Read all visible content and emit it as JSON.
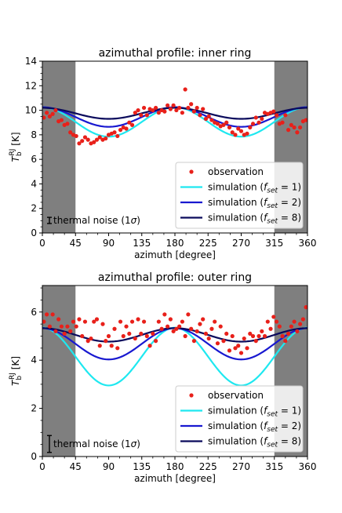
{
  "chart_data": [
    {
      "type": "line",
      "title": "azimuthal profile: inner ring",
      "xlabel": "azimuth [degree]",
      "ylabel": "T_b^RJ [K]",
      "xlim": [
        0,
        360
      ],
      "ylim": [
        0,
        14
      ],
      "xticks": [
        0,
        45,
        90,
        135,
        180,
        225,
        270,
        315,
        360
      ],
      "yticks": [
        0,
        2,
        4,
        6,
        8,
        10,
        12,
        14
      ],
      "shaded_ranges": [
        [
          0,
          45
        ],
        [
          315,
          360
        ]
      ],
      "legend": {
        "placement": "lower-right"
      },
      "noise_note": "thermal noise (1σ)",
      "noise_sigma": 0.25,
      "observation": {
        "name": "observation",
        "color": "#e8201a",
        "x": [
          2,
          6,
          10,
          14,
          18,
          22,
          26,
          30,
          34,
          38,
          42,
          46,
          50,
          54,
          58,
          62,
          66,
          70,
          74,
          78,
          82,
          86,
          90,
          94,
          98,
          102,
          106,
          110,
          114,
          118,
          122,
          126,
          130,
          134,
          138,
          142,
          146,
          150,
          154,
          158,
          162,
          166,
          170,
          174,
          178,
          182,
          186,
          190,
          194,
          198,
          202,
          206,
          210,
          214,
          218,
          222,
          226,
          230,
          234,
          238,
          242,
          246,
          250,
          254,
          258,
          262,
          266,
          270,
          274,
          278,
          282,
          286,
          290,
          294,
          298,
          302,
          306,
          310,
          314,
          318,
          322,
          326,
          330,
          334,
          338,
          342,
          346,
          350,
          354,
          358
        ],
        "y": [
          9.4,
          9.8,
          9.5,
          9.7,
          10.0,
          9.1,
          9.2,
          8.8,
          8.9,
          8.2,
          8.0,
          7.9,
          7.3,
          7.5,
          7.8,
          7.6,
          7.3,
          7.4,
          7.6,
          7.8,
          7.6,
          7.7,
          8.0,
          8.1,
          8.2,
          7.9,
          8.4,
          8.6,
          8.5,
          9.0,
          8.8,
          9.8,
          10.0,
          9.6,
          10.2,
          9.6,
          10.1,
          10.0,
          10.2,
          9.8,
          10.0,
          9.9,
          10.4,
          10.1,
          10.4,
          10.0,
          10.2,
          9.8,
          11.7,
          10.2,
          10.5,
          9.9,
          10.2,
          9.6,
          10.1,
          9.3,
          9.5,
          9.2,
          9.0,
          8.9,
          8.7,
          8.8,
          9.0,
          8.6,
          8.2,
          8.0,
          8.5,
          8.3,
          8.0,
          8.1,
          8.6,
          8.9,
          9.4,
          9.0,
          9.3,
          9.8,
          9.7,
          9.8,
          9.9,
          9.6,
          8.9,
          9.0,
          9.6,
          8.4,
          8.8,
          8.6,
          8.2,
          8.6,
          9.1,
          9.2
        ]
      },
      "series": [
        {
          "name": "simulation (f_set = 1)",
          "color": "#1ee8f0",
          "mean": 9.05,
          "amp": 1.2
        },
        {
          "name": "simulation (f_set = 2)",
          "color": "#1818d0",
          "mean": 9.45,
          "amp": 0.8
        },
        {
          "name": "simulation (f_set = 8)",
          "color": "#0a0a5c",
          "mean": 9.75,
          "amp": 0.45
        }
      ]
    },
    {
      "type": "line",
      "title": "azimuthal profile: outer ring",
      "xlabel": "azimuth [degree]",
      "ylabel": "T_b^RJ [K]",
      "xlim": [
        0,
        360
      ],
      "ylim": [
        0,
        7.1
      ],
      "xticks": [
        0,
        45,
        90,
        135,
        180,
        225,
        270,
        315,
        360
      ],
      "yticks": [
        0,
        2,
        4,
        6
      ],
      "shaded_ranges": [
        [
          0,
          45
        ],
        [
          315,
          360
        ]
      ],
      "legend": {
        "placement": "lower-right"
      },
      "noise_note": "thermal noise (1σ)",
      "noise_sigma": 0.35,
      "observation": {
        "name": "observation",
        "color": "#e8201a",
        "x": [
          2,
          6,
          10,
          14,
          18,
          22,
          26,
          30,
          34,
          38,
          42,
          46,
          50,
          54,
          58,
          62,
          66,
          70,
          74,
          78,
          82,
          86,
          90,
          94,
          98,
          102,
          106,
          110,
          114,
          118,
          122,
          126,
          130,
          134,
          138,
          142,
          146,
          150,
          154,
          158,
          162,
          166,
          170,
          174,
          178,
          182,
          186,
          190,
          194,
          198,
          202,
          206,
          210,
          214,
          218,
          222,
          226,
          230,
          234,
          238,
          242,
          246,
          250,
          254,
          258,
          262,
          266,
          270,
          274,
          278,
          282,
          286,
          290,
          294,
          298,
          302,
          306,
          310,
          314,
          318,
          322,
          326,
          330,
          334,
          338,
          342,
          346,
          350,
          354,
          358
        ],
        "y": [
          5.6,
          5.9,
          5.4,
          5.9,
          5.2,
          5.7,
          5.4,
          5.1,
          5.4,
          5.2,
          5.6,
          5.4,
          5.7,
          5.0,
          5.6,
          4.8,
          4.9,
          5.6,
          5.7,
          4.6,
          5.5,
          4.8,
          5.0,
          4.6,
          5.3,
          4.5,
          5.6,
          5.0,
          5.4,
          5.1,
          5.6,
          4.9,
          5.7,
          5.1,
          5.6,
          5.0,
          4.6,
          5.1,
          4.8,
          5.6,
          5.3,
          5.9,
          5.4,
          5.7,
          5.2,
          5.3,
          5.4,
          5.6,
          5.0,
          5.9,
          5.3,
          4.8,
          5.2,
          5.5,
          5.7,
          5.1,
          4.9,
          5.3,
          5.6,
          4.7,
          5.4,
          4.8,
          5.1,
          4.4,
          5.0,
          4.5,
          4.6,
          4.3,
          4.9,
          4.5,
          5.1,
          5.0,
          4.8,
          5.0,
          5.2,
          5.0,
          5.6,
          5.3,
          5.8,
          5.6,
          5.4,
          5.0,
          4.8,
          5.1,
          5.4,
          5.6,
          5.2,
          5.5,
          5.7,
          6.2
        ]
      },
      "series": [
        {
          "name": "simulation (f_set = 1)",
          "color": "#1ee8f0",
          "mean": 4.15,
          "amp": 1.2
        },
        {
          "name": "simulation (f_set = 2)",
          "color": "#1818d0",
          "mean": 4.68,
          "amp": 0.65
        },
        {
          "name": "simulation (f_set = 8)",
          "color": "#0a0a5c",
          "mean": 5.05,
          "amp": 0.28
        }
      ]
    }
  ]
}
